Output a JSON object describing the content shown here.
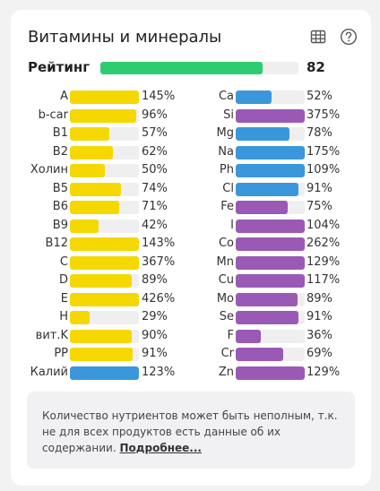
{
  "header": {
    "title": "Витамины и минералы",
    "table_icon": "table-icon",
    "help_icon": "help-circle-icon"
  },
  "rating": {
    "label": "Рейтинг",
    "value": "82",
    "fraction": 0.82,
    "color": "#2ecc71"
  },
  "colors": {
    "vitamin": "#f5d800",
    "mineral_blue": "#3a97dc",
    "mineral_purple": "#9b59b6",
    "track": "#efefef"
  },
  "left_column": [
    {
      "label": "A",
      "value": "145%",
      "percent": 145,
      "color": "#f5d800"
    },
    {
      "label": "b-car",
      "value": "96%",
      "percent": 96,
      "color": "#f5d800"
    },
    {
      "label": "B1",
      "value": "57%",
      "percent": 57,
      "color": "#f5d800"
    },
    {
      "label": "B2",
      "value": "62%",
      "percent": 62,
      "color": "#f5d800"
    },
    {
      "label": "Холин",
      "value": "50%",
      "percent": 50,
      "color": "#f5d800"
    },
    {
      "label": "B5",
      "value": "74%",
      "percent": 74,
      "color": "#f5d800"
    },
    {
      "label": "B6",
      "value": "71%",
      "percent": 71,
      "color": "#f5d800"
    },
    {
      "label": "B9",
      "value": "42%",
      "percent": 42,
      "color": "#f5d800"
    },
    {
      "label": "B12",
      "value": "143%",
      "percent": 143,
      "color": "#f5d800"
    },
    {
      "label": "C",
      "value": "367%",
      "percent": 367,
      "color": "#f5d800"
    },
    {
      "label": "D",
      "value": "89%",
      "percent": 89,
      "color": "#f5d800"
    },
    {
      "label": "E",
      "value": "426%",
      "percent": 426,
      "color": "#f5d800"
    },
    {
      "label": "H",
      "value": "29%",
      "percent": 29,
      "color": "#f5d800"
    },
    {
      "label": "вит.K",
      "value": "90%",
      "percent": 90,
      "color": "#f5d800"
    },
    {
      "label": "PP",
      "value": "91%",
      "percent": 91,
      "color": "#f5d800"
    },
    {
      "label": "Калий",
      "value": "123%",
      "percent": 123,
      "color": "#3a97dc"
    }
  ],
  "right_column": [
    {
      "label": "Ca",
      "value": "52%",
      "percent": 52,
      "color": "#3a97dc"
    },
    {
      "label": "Si",
      "value": "375%",
      "percent": 375,
      "color": "#9b59b6"
    },
    {
      "label": "Mg",
      "value": "78%",
      "percent": 78,
      "color": "#3a97dc"
    },
    {
      "label": "Na",
      "value": "175%",
      "percent": 175,
      "color": "#3a97dc"
    },
    {
      "label": "Ph",
      "value": "109%",
      "percent": 109,
      "color": "#3a97dc"
    },
    {
      "label": "Cl",
      "value": "91%",
      "percent": 91,
      "color": "#3a97dc"
    },
    {
      "label": "Fe",
      "value": "75%",
      "percent": 75,
      "color": "#9b59b6"
    },
    {
      "label": "I",
      "value": "104%",
      "percent": 104,
      "color": "#9b59b6"
    },
    {
      "label": "Co",
      "value": "262%",
      "percent": 262,
      "color": "#9b59b6"
    },
    {
      "label": "Mn",
      "value": "129%",
      "percent": 129,
      "color": "#9b59b6"
    },
    {
      "label": "Cu",
      "value": "117%",
      "percent": 117,
      "color": "#9b59b6"
    },
    {
      "label": "Mo",
      "value": "89%",
      "percent": 89,
      "color": "#9b59b6"
    },
    {
      "label": "Se",
      "value": "91%",
      "percent": 91,
      "color": "#9b59b6"
    },
    {
      "label": "F",
      "value": "36%",
      "percent": 36,
      "color": "#9b59b6"
    },
    {
      "label": "Cr",
      "value": "69%",
      "percent": 69,
      "color": "#9b59b6"
    },
    {
      "label": "Zn",
      "value": "129%",
      "percent": 129,
      "color": "#9b59b6"
    }
  ],
  "note": {
    "text": "Количество нутриентов может быть неполным, т.к. не для всех продуктов есть данные об их содержании.",
    "link": "Подробнее..."
  }
}
